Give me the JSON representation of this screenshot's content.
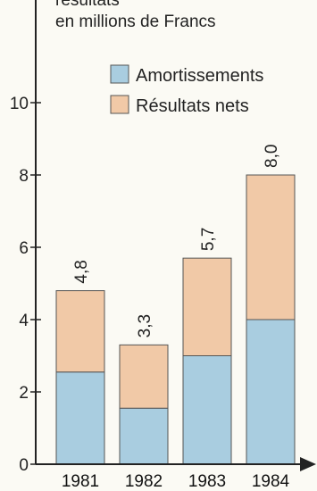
{
  "chart_data": {
    "type": "bar",
    "stacked": true,
    "title": "résultats",
    "subtitle": "en millions de Francs",
    "categories": [
      "1981",
      "1982",
      "1983",
      "1984"
    ],
    "series": [
      {
        "name": "Amortissements",
        "values": [
          2.55,
          1.55,
          3.0,
          4.0
        ],
        "color": "#a9cde0"
      },
      {
        "name": "Résultats nets",
        "values": [
          2.25,
          1.75,
          2.7,
          4.0
        ],
        "color": "#f1c9a7"
      }
    ],
    "totals": [
      "4,8",
      "3,3",
      "5,7",
      "8,0"
    ],
    "ylim": [
      0,
      12
    ],
    "yticks": [
      0,
      2,
      4,
      6,
      8,
      10
    ],
    "ytick_labels": [
      "0",
      "2",
      "4",
      "6",
      "8",
      "10"
    ],
    "legend_placement": "top-right",
    "grid": false,
    "colors": {
      "axis": "#222222",
      "bar_edge": "#555555"
    }
  }
}
